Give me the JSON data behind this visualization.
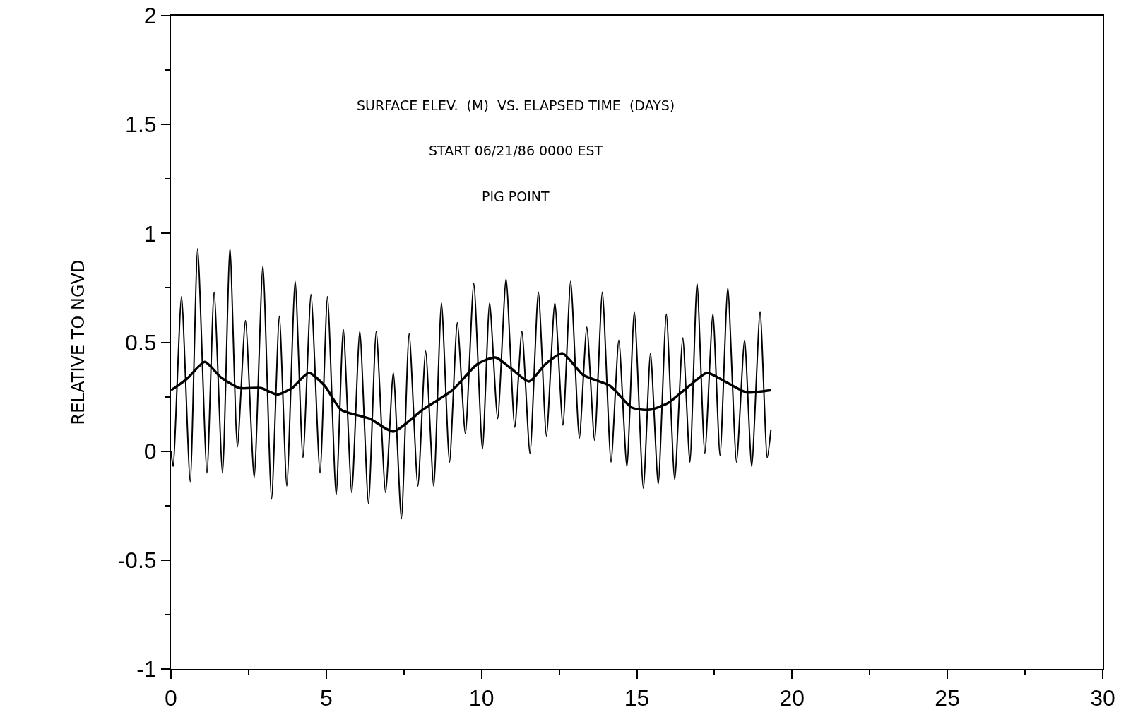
{
  "chart_data": {
    "type": "line",
    "title": "SURFACE ELEV.  (M)  VS. ELAPSED TIME  (DAYS)",
    "subtitle": "START 06/21/86 0000 EST",
    "annotations": [
      "PIG POINT"
    ],
    "ylabel": "RELATIVE TO NGVD",
    "xlim": [
      0,
      30
    ],
    "xticks": [
      0,
      5,
      10,
      15,
      20,
      25,
      30
    ],
    "ylim": [
      -1,
      2
    ],
    "yticks": [
      -1,
      -0.5,
      0,
      0.5,
      1,
      1.5,
      2
    ],
    "grid": false,
    "marker": "none",
    "line_style": "solid",
    "series": [
      {
        "color": "#000000",
        "x": [
          0.0,
          0.07,
          0.34,
          0.62,
          0.86,
          1.16,
          1.39,
          1.66,
          1.9,
          2.14,
          2.4,
          2.68,
          2.96,
          3.24,
          3.49,
          3.73,
          4.0,
          4.25,
          4.51,
          4.8,
          5.04,
          5.32,
          5.55,
          5.82,
          6.08,
          6.36,
          6.61,
          6.91,
          7.16,
          7.42,
          7.67,
          7.95,
          8.2,
          8.46,
          8.71,
          8.97,
          9.22,
          9.48,
          9.75,
          10.03,
          10.26,
          10.52,
          10.79,
          11.07,
          11.3,
          11.56,
          11.83,
          12.09,
          12.36,
          12.62,
          12.87,
          13.15,
          13.39,
          13.64,
          13.89,
          14.17,
          14.42,
          14.68,
          14.92,
          15.21,
          15.44,
          15.69,
          15.95,
          16.22,
          16.48,
          16.71,
          16.94,
          17.19,
          17.45,
          17.68,
          17.93,
          18.21,
          18.47,
          18.7,
          18.97,
          19.2,
          19.32
        ],
        "values": [
          0.0,
          -0.07,
          0.71,
          -0.14,
          0.93,
          -0.1,
          0.73,
          -0.1,
          0.93,
          0.02,
          0.6,
          -0.12,
          0.85,
          -0.22,
          0.62,
          -0.16,
          0.78,
          -0.03,
          0.72,
          -0.1,
          0.71,
          -0.2,
          0.56,
          -0.19,
          0.55,
          -0.24,
          0.55,
          -0.19,
          0.36,
          -0.31,
          0.54,
          -0.16,
          0.46,
          -0.16,
          0.68,
          -0.05,
          0.59,
          0.08,
          0.77,
          0.01,
          0.68,
          0.15,
          0.79,
          0.11,
          0.55,
          -0.01,
          0.73,
          0.07,
          0.68,
          0.12,
          0.78,
          0.06,
          0.57,
          0.05,
          0.73,
          -0.05,
          0.51,
          -0.07,
          0.64,
          -0.17,
          0.45,
          -0.15,
          0.63,
          -0.13,
          0.52,
          -0.05,
          0.77,
          -0.01,
          0.63,
          -0.02,
          0.75,
          -0.05,
          0.51,
          -0.07,
          0.64,
          -0.03,
          0.1
        ]
      },
      {
        "color": "#000000",
        "x": [
          0.0,
          0.5,
          1.09,
          1.6,
          2.2,
          2.9,
          3.42,
          3.9,
          4.44,
          4.95,
          5.48,
          6.39,
          7.16,
          8.1,
          9.06,
          9.87,
          10.45,
          10.95,
          11.53,
          12.06,
          12.6,
          13.27,
          14.14,
          14.84,
          15.41,
          15.99,
          16.69,
          17.26,
          17.84,
          18.53,
          19.32
        ],
        "values": [
          0.28,
          0.33,
          0.41,
          0.34,
          0.29,
          0.29,
          0.26,
          0.29,
          0.36,
          0.3,
          0.19,
          0.15,
          0.09,
          0.19,
          0.28,
          0.4,
          0.43,
          0.38,
          0.32,
          0.4,
          0.45,
          0.35,
          0.3,
          0.2,
          0.19,
          0.22,
          0.3,
          0.36,
          0.32,
          0.27,
          0.28
        ]
      }
    ]
  }
}
